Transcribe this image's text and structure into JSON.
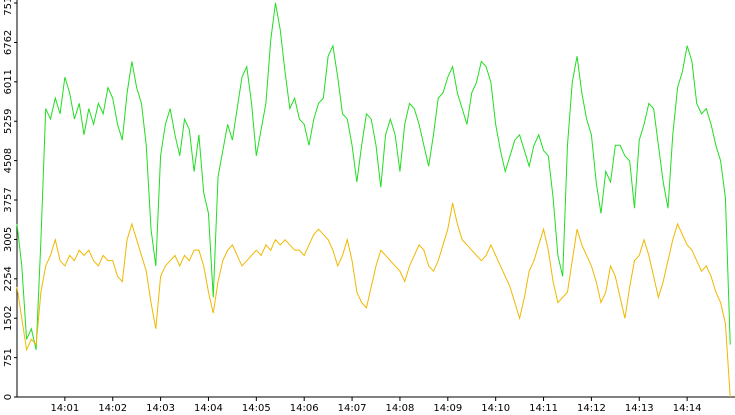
{
  "chart_data": {
    "type": "line",
    "x": [
      0,
      0.1,
      0.2,
      0.3,
      0.4,
      0.5,
      0.6,
      0.7,
      0.8,
      0.9,
      1,
      1.1,
      1.2,
      1.3,
      1.4,
      1.5,
      1.6,
      1.7,
      1.8,
      1.9,
      2,
      2.1,
      2.2,
      2.3,
      2.4,
      2.5,
      2.6,
      2.7,
      2.8,
      2.9,
      3,
      3.1,
      3.2,
      3.3,
      3.4,
      3.5,
      3.6,
      3.7,
      3.8,
      3.9,
      4,
      4.1,
      4.2,
      4.3,
      4.4,
      4.5,
      4.6,
      4.7,
      4.8,
      4.9,
      5,
      5.1,
      5.2,
      5.3,
      5.4,
      5.5,
      5.6,
      5.7,
      5.8,
      5.9,
      6,
      6.1,
      6.2,
      6.3,
      6.4,
      6.5,
      6.6,
      6.7,
      6.8,
      6.9,
      7,
      7.1,
      7.2,
      7.3,
      7.4,
      7.5,
      7.6,
      7.7,
      7.8,
      7.9,
      8,
      8.1,
      8.2,
      8.3,
      8.4,
      8.5,
      8.6,
      8.7,
      8.8,
      8.9,
      9,
      9.1,
      9.2,
      9.3,
      9.4,
      9.5,
      9.6,
      9.7,
      9.8,
      9.9,
      10,
      10.1,
      10.2,
      10.3,
      10.4,
      10.5,
      10.6,
      10.7,
      10.8,
      10.9,
      11,
      11.1,
      11.2,
      11.3,
      11.4,
      11.5,
      11.6,
      11.7,
      11.8,
      11.9,
      12,
      12.1,
      12.2,
      12.3,
      12.4,
      12.5,
      12.6,
      12.7,
      12.8,
      12.9,
      13,
      13.1,
      13.2,
      13.3,
      13.4,
      13.5,
      13.6,
      13.7,
      13.8,
      13.9,
      14,
      14.1,
      14.2,
      14.3,
      14.4,
      14.5,
      14.6,
      14.7,
      14.8,
      14.9
    ],
    "series": [
      {
        "color": "#22dd22",
        "values": [
          3300,
          2500,
          1100,
          1300,
          900,
          3000,
          5500,
          5300,
          5700,
          5400,
          6100,
          5800,
          5300,
          5600,
          5000,
          5500,
          5200,
          5600,
          5400,
          5900,
          5700,
          5200,
          4900,
          5800,
          6400,
          5900,
          5600,
          4800,
          3200,
          2500,
          4600,
          5200,
          5500,
          5000,
          4600,
          5300,
          5100,
          4300,
          5000,
          3900,
          3500,
          1900,
          4200,
          4700,
          5200,
          4900,
          5500,
          6100,
          6300,
          5600,
          4600,
          5100,
          5600,
          6800,
          7514,
          7000,
          6200,
          5500,
          5700,
          5300,
          5200,
          4800,
          5300,
          5600,
          5700,
          6500,
          6700,
          6100,
          5400,
          5300,
          4800,
          4100,
          4800,
          5400,
          5300,
          4800,
          4000,
          5000,
          5300,
          5000,
          4300,
          5200,
          5600,
          5500,
          5200,
          4800,
          4400,
          5000,
          5700,
          5800,
          6100,
          6300,
          5800,
          5500,
          5200,
          5800,
          6000,
          6400,
          6300,
          6000,
          5200,
          4700,
          4300,
          4600,
          4900,
          5000,
          4700,
          4400,
          4800,
          5000,
          4700,
          4600,
          3800,
          2700,
          2300,
          4800,
          6000,
          6500,
          5800,
          5300,
          5000,
          4100,
          3500,
          4300,
          4100,
          4800,
          4800,
          4600,
          4500,
          3600,
          4900,
          5200,
          5600,
          5500,
          4800,
          4100,
          3600,
          5000,
          5900,
          6200,
          6700,
          6400,
          5600,
          5400,
          5500,
          5200,
          4800,
          4500,
          3800,
          1000
        ]
      },
      {
        "color": "#f0b800",
        "values": [
          2100,
          1500,
          900,
          1100,
          1000,
          2000,
          2500,
          2700,
          3000,
          2600,
          2500,
          2700,
          2600,
          2800,
          2700,
          2800,
          2600,
          2500,
          2700,
          2600,
          2600,
          2300,
          2200,
          3000,
          3300,
          3000,
          2700,
          2400,
          1800,
          1300,
          2300,
          2500,
          2600,
          2700,
          2500,
          2700,
          2600,
          2800,
          2800,
          2500,
          2000,
          1600,
          2200,
          2600,
          2800,
          2900,
          2700,
          2500,
          2600,
          2700,
          2800,
          2700,
          2900,
          2800,
          3000,
          2900,
          3000,
          2900,
          2800,
          2800,
          2700,
          2900,
          3100,
          3200,
          3100,
          3000,
          2800,
          2500,
          2700,
          3000,
          2600,
          2000,
          1800,
          1700,
          2100,
          2500,
          2800,
          2700,
          2600,
          2500,
          2400,
          2200,
          2500,
          2700,
          2900,
          2800,
          2500,
          2400,
          2600,
          2900,
          3200,
          3700,
          3300,
          3000,
          2900,
          2800,
          2700,
          2600,
          2700,
          2900,
          2700,
          2500,
          2300,
          2100,
          1800,
          1500,
          1900,
          2400,
          2600,
          2900,
          3200,
          2800,
          2200,
          1800,
          1900,
          2000,
          2600,
          3200,
          2900,
          2700,
          2500,
          2200,
          1800,
          2000,
          2500,
          2300,
          1900,
          1500,
          2100,
          2600,
          2700,
          3000,
          2700,
          2300,
          1900,
          2200,
          2600,
          3000,
          3300,
          3100,
          2900,
          2800,
          2600,
          2400,
          2500,
          2300,
          2000,
          1800,
          1400,
          0
        ]
      }
    ],
    "xlim": [
      0,
      15
    ],
    "xticks": [
      {
        "value": 1,
        "label": "14:01"
      },
      {
        "value": 2,
        "label": "14:02"
      },
      {
        "value": 3,
        "label": "14:03"
      },
      {
        "value": 4,
        "label": "14:04"
      },
      {
        "value": 5,
        "label": "14:05"
      },
      {
        "value": 6,
        "label": "14:06"
      },
      {
        "value": 7,
        "label": "14:07"
      },
      {
        "value": 8,
        "label": "14:08"
      },
      {
        "value": 9,
        "label": "14:09"
      },
      {
        "value": 10,
        "label": "14:10"
      },
      {
        "value": 11,
        "label": "14:11"
      },
      {
        "value": 12,
        "label": "14:12"
      },
      {
        "value": 13,
        "label": "14:13"
      },
      {
        "value": 14,
        "label": "14:14"
      }
    ],
    "ylim": [
      0,
      7514
    ],
    "yticks": [
      0,
      751,
      1502,
      2254,
      3005,
      3757,
      4508,
      5259,
      6011,
      6762,
      7514
    ]
  }
}
